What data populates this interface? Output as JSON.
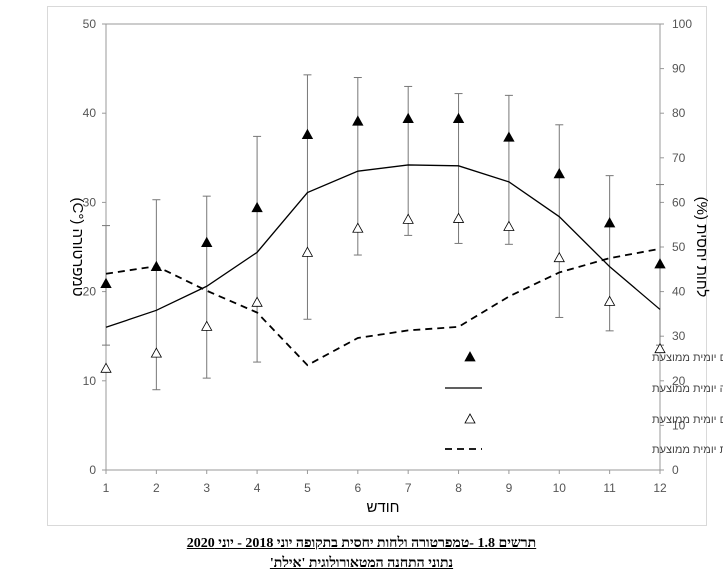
{
  "caption": {
    "line1": "תרשים 1.8 -טמפרטורה ולחות יחסית בתקופה יוני 2018 - יוני 2020",
    "line2": "נתוני התחנה המטאורולוגית 'אילת'"
  },
  "chart_data": {
    "type": "line",
    "xlabel": "חודש",
    "ylabel_left": "טמפרטורה (°C)",
    "ylabel_right": "לחות יחסית (%)",
    "x": [
      1,
      2,
      3,
      4,
      5,
      6,
      7,
      8,
      9,
      10,
      11,
      12
    ],
    "x_ticks": [
      "1",
      "2",
      "3",
      "4",
      "5",
      "6",
      "7",
      "8",
      "9",
      "10",
      "11",
      "12"
    ],
    "y_left_lim": [
      0,
      50
    ],
    "y_left_ticks": [
      "0",
      "10",
      "20",
      "30",
      "40",
      "50"
    ],
    "y_right_lim": [
      0,
      100
    ],
    "y_right_ticks": [
      "0",
      "10",
      "20",
      "30",
      "40",
      "50",
      "60",
      "70",
      "80",
      "90",
      "100"
    ],
    "grid": false,
    "legend_position": "right",
    "series": [
      {
        "name": "טמפרטורת מקסימום יומית ממוצעת",
        "axis": "left",
        "style": "filled-triangle",
        "values": [
          20.9,
          22.8,
          25.5,
          29.4,
          37.6,
          39.1,
          39.4,
          39.4,
          37.3,
          33.2,
          27.7,
          23.1
        ],
        "error_low": [
          14.0,
          9.0,
          10.3,
          12.1,
          16.9,
          24.1,
          26.3,
          25.4,
          25.3,
          17.1,
          15.6,
          14.0
        ],
        "error_high": [
          27.4,
          30.3,
          30.7,
          37.4,
          44.3,
          44.0,
          43.0,
          42.2,
          42.0,
          38.7,
          33.0,
          32.0
        ]
      },
      {
        "name": "טמפרטורה יומית ממוצעת",
        "axis": "left",
        "style": "solid-line",
        "values": [
          16.0,
          17.9,
          20.6,
          24.4,
          31.1,
          33.5,
          34.2,
          34.1,
          32.3,
          28.4,
          22.8,
          18.0
        ]
      },
      {
        "name": "טמפרטורת מינימום יומית ממוצעת",
        "axis": "left",
        "style": "open-triangle",
        "values": [
          11.4,
          13.1,
          16.1,
          18.8,
          24.4,
          27.1,
          28.1,
          28.2,
          27.3,
          23.8,
          18.9,
          13.6
        ]
      },
      {
        "name": "לחות יחסית יומית ממוצעת",
        "axis": "right",
        "style": "dashed-line",
        "values": [
          44,
          45.7,
          40.2,
          35.3,
          23.5,
          29.6,
          31.3,
          32.1,
          38.9,
          44.3,
          47.5,
          49.6
        ]
      }
    ]
  },
  "colors": {
    "line": "#000000",
    "axis": "#999999",
    "tick_text": "#555555",
    "error_bar": "#777777"
  }
}
